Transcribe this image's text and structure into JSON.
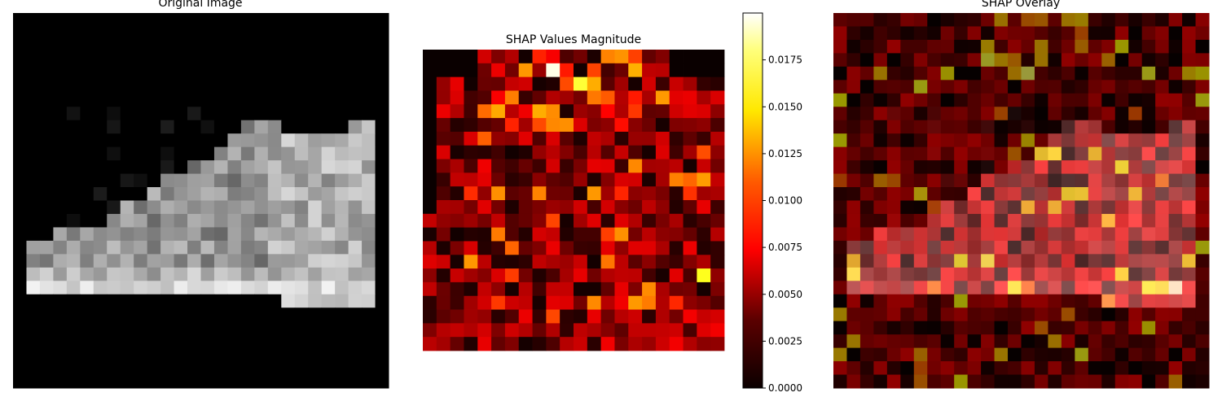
{
  "chart_data": [
    {
      "type": "image",
      "title": "Original Image",
      "description_grid": "28x28 grayscale",
      "cmap": "gray"
    },
    {
      "type": "heatmap",
      "title": "SHAP Values Magnitude",
      "grid": "22x22",
      "cmap": "hot",
      "colorbar": {
        "min": 0.0,
        "max": 0.02,
        "ticks": [
          0.0,
          0.0025,
          0.005,
          0.0075,
          0.01,
          0.0125,
          0.015,
          0.0175
        ],
        "tick_labels": [
          "0.0000",
          "0.0025",
          "0.0050",
          "0.0075",
          "0.0100",
          "0.0125",
          "0.0150",
          "0.0175"
        ]
      }
    },
    {
      "type": "image",
      "title": "SHAP Overlay",
      "grid": "28x28",
      "cmap": "hot over gray"
    }
  ],
  "texts": {
    "title_left": "Original Image",
    "title_mid": "SHAP Values Magnitude",
    "title_right": "SHAP Overlay"
  }
}
